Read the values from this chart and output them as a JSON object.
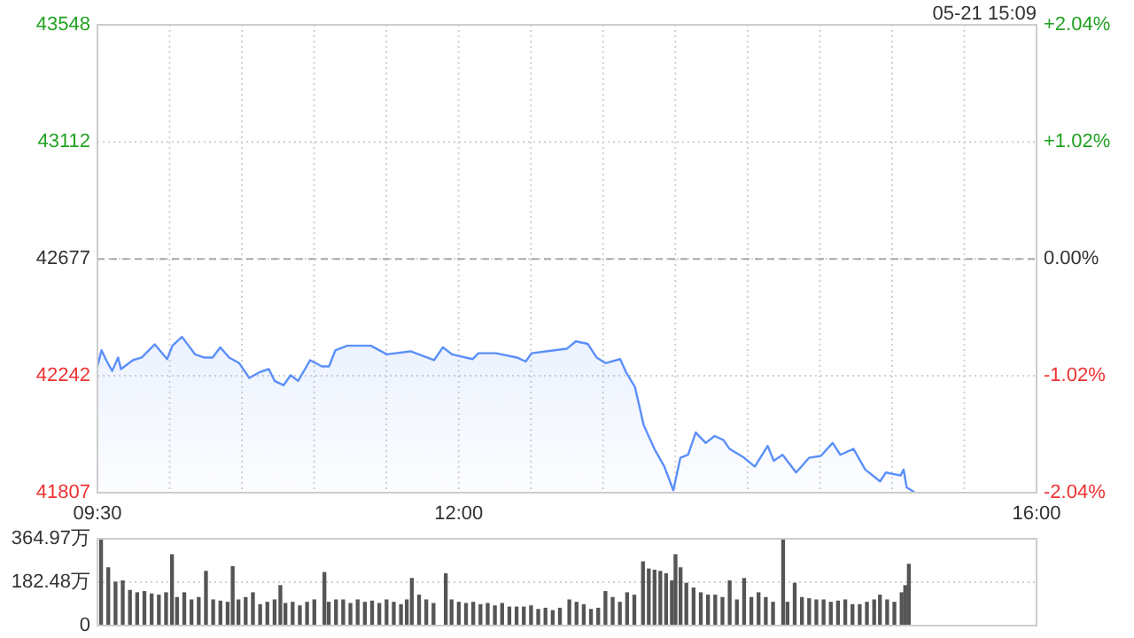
{
  "chart_data": [
    {
      "type": "area",
      "x": [
        9.5,
        9.528,
        9.561,
        9.602,
        9.643,
        9.663,
        9.745,
        9.807,
        9.896,
        9.982,
        10.019,
        10.085,
        10.175,
        10.236,
        10.297,
        10.35,
        10.411,
        10.481,
        10.551,
        10.625,
        10.686,
        10.726,
        10.788,
        10.837,
        10.889,
        10.972,
        11.054,
        11.103,
        11.147,
        11.229,
        11.392,
        11.503,
        11.667,
        11.83,
        11.891,
        11.953,
        12.096,
        12.137,
        12.259,
        12.403,
        12.464,
        12.505,
        12.606,
        12.75,
        12.811,
        12.893,
        12.955,
        13.016,
        13.118,
        13.158,
        13.22,
        13.281,
        13.355,
        13.424,
        13.486,
        13.535,
        13.588,
        13.641,
        13.71,
        13.772,
        13.833,
        13.875,
        13.976,
        14.05,
        14.139,
        14.181,
        14.242,
        14.336,
        14.426,
        14.507,
        14.589,
        14.642,
        14.733,
        14.814,
        14.917,
        14.957,
        15.059,
        15.08,
        15.101,
        15.15
      ],
      "series": [
        {
          "color": "#5b8ff9",
          "values": [
            42277,
            42337,
            42300,
            42260,
            42310,
            42267,
            42300,
            42310,
            42359,
            42304,
            42354,
            42387,
            42322,
            42310,
            42310,
            42348,
            42310,
            42289,
            42234,
            42256,
            42267,
            42223,
            42207,
            42244,
            42223,
            42300,
            42277,
            42277,
            42337,
            42354,
            42354,
            42322,
            42333,
            42300,
            42348,
            42322,
            42304,
            42326,
            42326,
            42310,
            42295,
            42326,
            42333,
            42343,
            42370,
            42361,
            42310,
            42289,
            42304,
            42256,
            42201,
            42058,
            41970,
            41904,
            41816,
            41937,
            41948,
            42031,
            41992,
            42018,
            42003,
            41970,
            41937,
            41904,
            41981,
            41926,
            41948,
            41882,
            41937,
            41944,
            41992,
            41948,
            41970,
            41893,
            41849,
            41882,
            41871,
            41893,
            41827,
            41810
          ]
        }
      ],
      "xlim": [
        9.5,
        16
      ],
      "xticks": [
        {
          "value": 9.5,
          "label": "09:30"
        },
        {
          "value": 10,
          "label": null
        },
        {
          "value": 10.5,
          "label": null
        },
        {
          "value": 11,
          "label": null
        },
        {
          "value": 11.5,
          "label": null
        },
        {
          "value": 12,
          "label": "12:00"
        },
        {
          "value": 12.5,
          "label": null
        },
        {
          "value": 13,
          "label": null
        },
        {
          "value": 13.5,
          "label": null
        },
        {
          "value": 14,
          "label": null
        },
        {
          "value": 14.5,
          "label": null
        },
        {
          "value": 15,
          "label": null
        },
        {
          "value": 15.5,
          "label": null
        },
        {
          "value": 16,
          "label": "16:00"
        }
      ],
      "ylim": [
        41807,
        43548
      ],
      "yticks": [
        41807,
        42242,
        42677,
        43112,
        43548
      ],
      "y2lim": [
        -2.04,
        2.04
      ],
      "y2ticks": [
        {
          "value": 2.04,
          "label": "+2.04%"
        },
        {
          "value": 1.02,
          "label": "+1.02%"
        },
        {
          "value": 0,
          "label": "0.00%"
        },
        {
          "value": -1.02,
          "label": "-1.02%"
        },
        {
          "value": -2.04,
          "label": "-2.04%"
        }
      ],
      "ref_lines": [
        {
          "axis": "y",
          "value": 42677,
          "color": "#aaaaaa",
          "line_style": "dashed"
        }
      ],
      "annotations": [
        "05-21 15:09"
      ],
      "grid": true
    },
    {
      "type": "bar",
      "x": [
        9.525,
        9.575,
        9.625,
        9.675,
        9.725,
        9.775,
        9.825,
        9.875,
        9.925,
        9.975,
        10.016,
        10.051,
        10.101,
        10.151,
        10.201,
        10.251,
        10.301,
        10.351,
        10.401,
        10.436,
        10.476,
        10.526,
        10.576,
        10.626,
        10.676,
        10.726,
        10.766,
        10.801,
        10.851,
        10.901,
        10.951,
        11.001,
        11.071,
        11.101,
        11.151,
        11.201,
        11.251,
        11.301,
        11.351,
        11.401,
        11.451,
        11.501,
        11.551,
        11.601,
        11.641,
        11.676,
        11.726,
        11.776,
        11.826,
        11.911,
        11.951,
        12.001,
        12.051,
        12.101,
        12.151,
        12.201,
        12.251,
        12.301,
        12.351,
        12.401,
        12.451,
        12.501,
        12.551,
        12.601,
        12.651,
        12.701,
        12.766,
        12.816,
        12.866,
        12.916,
        12.966,
        13.016,
        13.066,
        13.116,
        13.166,
        13.216,
        13.276,
        13.316,
        13.356,
        13.396,
        13.436,
        13.476,
        13.501,
        13.536,
        13.576,
        13.626,
        13.676,
        13.726,
        13.776,
        13.826,
        13.876,
        13.926,
        13.976,
        14.026,
        14.076,
        14.126,
        14.176,
        14.246,
        14.276,
        14.326,
        14.376,
        14.426,
        14.476,
        14.526,
        14.576,
        14.626,
        14.676,
        14.726,
        14.776,
        14.826,
        14.876,
        14.916,
        14.966,
        15.016,
        15.066,
        15.091,
        15.116
      ],
      "series": [
        {
          "color": "#555555",
          "values": [
            364,
            245,
            185,
            190,
            150,
            140,
            145,
            135,
            130,
            140,
            300,
            120,
            140,
            110,
            120,
            230,
            110,
            105,
            100,
            250,
            110,
            120,
            140,
            90,
            100,
            110,
            170,
            95,
            100,
            85,
            100,
            110,
            225,
            100,
            110,
            110,
            95,
            110,
            100,
            105,
            95,
            110,
            100,
            90,
            110,
            200,
            130,
            110,
            95,
            220,
            110,
            100,
            95,
            100,
            90,
            95,
            85,
            95,
            80,
            80,
            80,
            85,
            70,
            75,
            65,
            75,
            110,
            100,
            90,
            70,
            75,
            145,
            120,
            100,
            140,
            130,
            270,
            240,
            235,
            230,
            220,
            190,
            300,
            245,
            180,
            160,
            140,
            130,
            130,
            120,
            190,
            110,
            200,
            120,
            140,
            120,
            100,
            364,
            100,
            180,
            120,
            115,
            110,
            110,
            100,
            105,
            110,
            90,
            90,
            100,
            110,
            130,
            110,
            100,
            140,
            170,
            260
          ]
        }
      ],
      "xlim": [
        9.5,
        16
      ],
      "ylim": [
        0,
        364.97
      ],
      "yticks": [
        0,
        {
          "value": 182.48,
          "label": "182.48万"
        },
        {
          "value": 364.97,
          "label": "364.97万"
        }
      ],
      "tick_labels": "y",
      "grid": "y"
    }
  ]
}
